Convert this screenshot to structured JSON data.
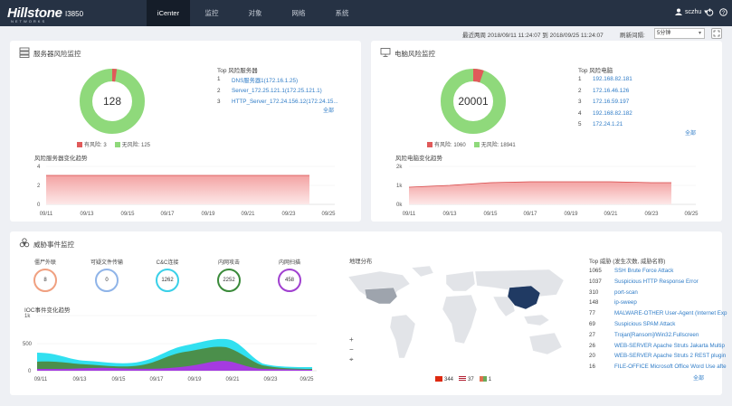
{
  "header": {
    "logo": "Hillstone",
    "logo_sub": "NETWORKS",
    "model": "I3850",
    "nav": [
      "iCenter",
      "监控",
      "对象",
      "网络",
      "系统"
    ],
    "user": "sczhu"
  },
  "toolbar": {
    "range": "最近两周 2018/09/11 11:24:07 到 2018/09/25 11:24:07",
    "refresh_label": "刷新间隔:",
    "refresh_value": "5分钟"
  },
  "server_panel": {
    "title": "服务器风险监控",
    "total": "128",
    "risk_fraction": 0.023,
    "legend": [
      {
        "label": "有风险: 3",
        "color": "#e05a5a"
      },
      {
        "label": "无风险: 125",
        "color": "#8fd97b"
      }
    ],
    "top_title": "Top 风险服务器",
    "top": [
      {
        "idx": "1",
        "name": "DNS服务器1(172.16.1.25)"
      },
      {
        "idx": "2",
        "name": "Server_172.25.121.1(172.25.121.1)"
      },
      {
        "idx": "3",
        "name": "HTTP_Server_172.24.156.12(172.24.15..."
      }
    ],
    "more": "全部",
    "trend_title": "风险服务器变化趋势",
    "trend_yticks": [
      "4",
      "2",
      "0"
    ],
    "trend_xticks": [
      "09/11",
      "09/13",
      "09/15",
      "09/17",
      "09/19",
      "09/21",
      "09/23",
      "09/25"
    ]
  },
  "pc_panel": {
    "title": "电脑风险监控",
    "total": "20001",
    "risk_fraction": 0.053,
    "legend": [
      {
        "label": "有风险: 1060",
        "color": "#e05a5a"
      },
      {
        "label": "无风险: 18941",
        "color": "#8fd97b"
      }
    ],
    "top_title": "Top 风险电脑",
    "top": [
      {
        "idx": "1",
        "name": "192.168.82.181"
      },
      {
        "idx": "2",
        "name": "172.16.46.126"
      },
      {
        "idx": "3",
        "name": "172.16.59.197"
      },
      {
        "idx": "4",
        "name": "192.168.82.182"
      },
      {
        "idx": "5",
        "name": "172.24.1.21"
      }
    ],
    "more": "全部",
    "trend_title": "风险电脑变化趋势",
    "trend_yticks": [
      "2k",
      "1k",
      "0k"
    ],
    "trend_xticks": [
      "09/11",
      "09/13",
      "09/15",
      "09/17",
      "09/19",
      "09/21",
      "09/23",
      "09/25"
    ]
  },
  "threat_panel": {
    "title": "威胁事件监控",
    "stats": [
      {
        "label": "僵尸外联",
        "value": "8",
        "color": "#f0a080"
      },
      {
        "label": "可疑文件传输",
        "value": "0",
        "color": "#8fb4e8"
      },
      {
        "label": "C&C连接",
        "value": "1262",
        "color": "#3ad0e8"
      },
      {
        "label": "内网攻击",
        "value": "2252",
        "color": "#3a8a3a"
      },
      {
        "label": "内网扫描",
        "value": "458",
        "color": "#a040d0"
      }
    ],
    "ioc_title": "IOC事件变化趋势",
    "ioc_yticks": [
      "1k",
      "500",
      "0"
    ],
    "ioc_xticks": [
      "09/11",
      "09/13",
      "09/15",
      "09/17",
      "09/19",
      "09/21",
      "09/23",
      "09/25"
    ],
    "map_title": "地理分布",
    "map_legend": [
      {
        "count": "344",
        "flag": "cn"
      },
      {
        "count": "37",
        "flag": "us"
      },
      {
        "count": "1",
        "flag": "other"
      }
    ],
    "top_title": "Top 威胁 (发生次数, 威胁名称)",
    "top": [
      {
        "count": "1065",
        "name": "SSH Brute Force Attack"
      },
      {
        "count": "1037",
        "name": "Suspicious HTTP Response Error"
      },
      {
        "count": "310",
        "name": "port-scan"
      },
      {
        "count": "148",
        "name": "ip-sweep"
      },
      {
        "count": "77",
        "name": "MALWARE-OTHER User-Agent (Internet Exp"
      },
      {
        "count": "69",
        "name": "Suspicious SPAM Attack"
      },
      {
        "count": "27",
        "name": "Trojan[Ransom]/Win32.Fullscreen"
      },
      {
        "count": "26",
        "name": "WEB-SERVER Apache Struts Jakarta Multip"
      },
      {
        "count": "20",
        "name": "WEB-SERVER Apache Struts 2 REST plugin"
      },
      {
        "count": "16",
        "name": "FILE-OFFICE Microsoft Office Word Use afte"
      }
    ],
    "more": "全部"
  }
}
